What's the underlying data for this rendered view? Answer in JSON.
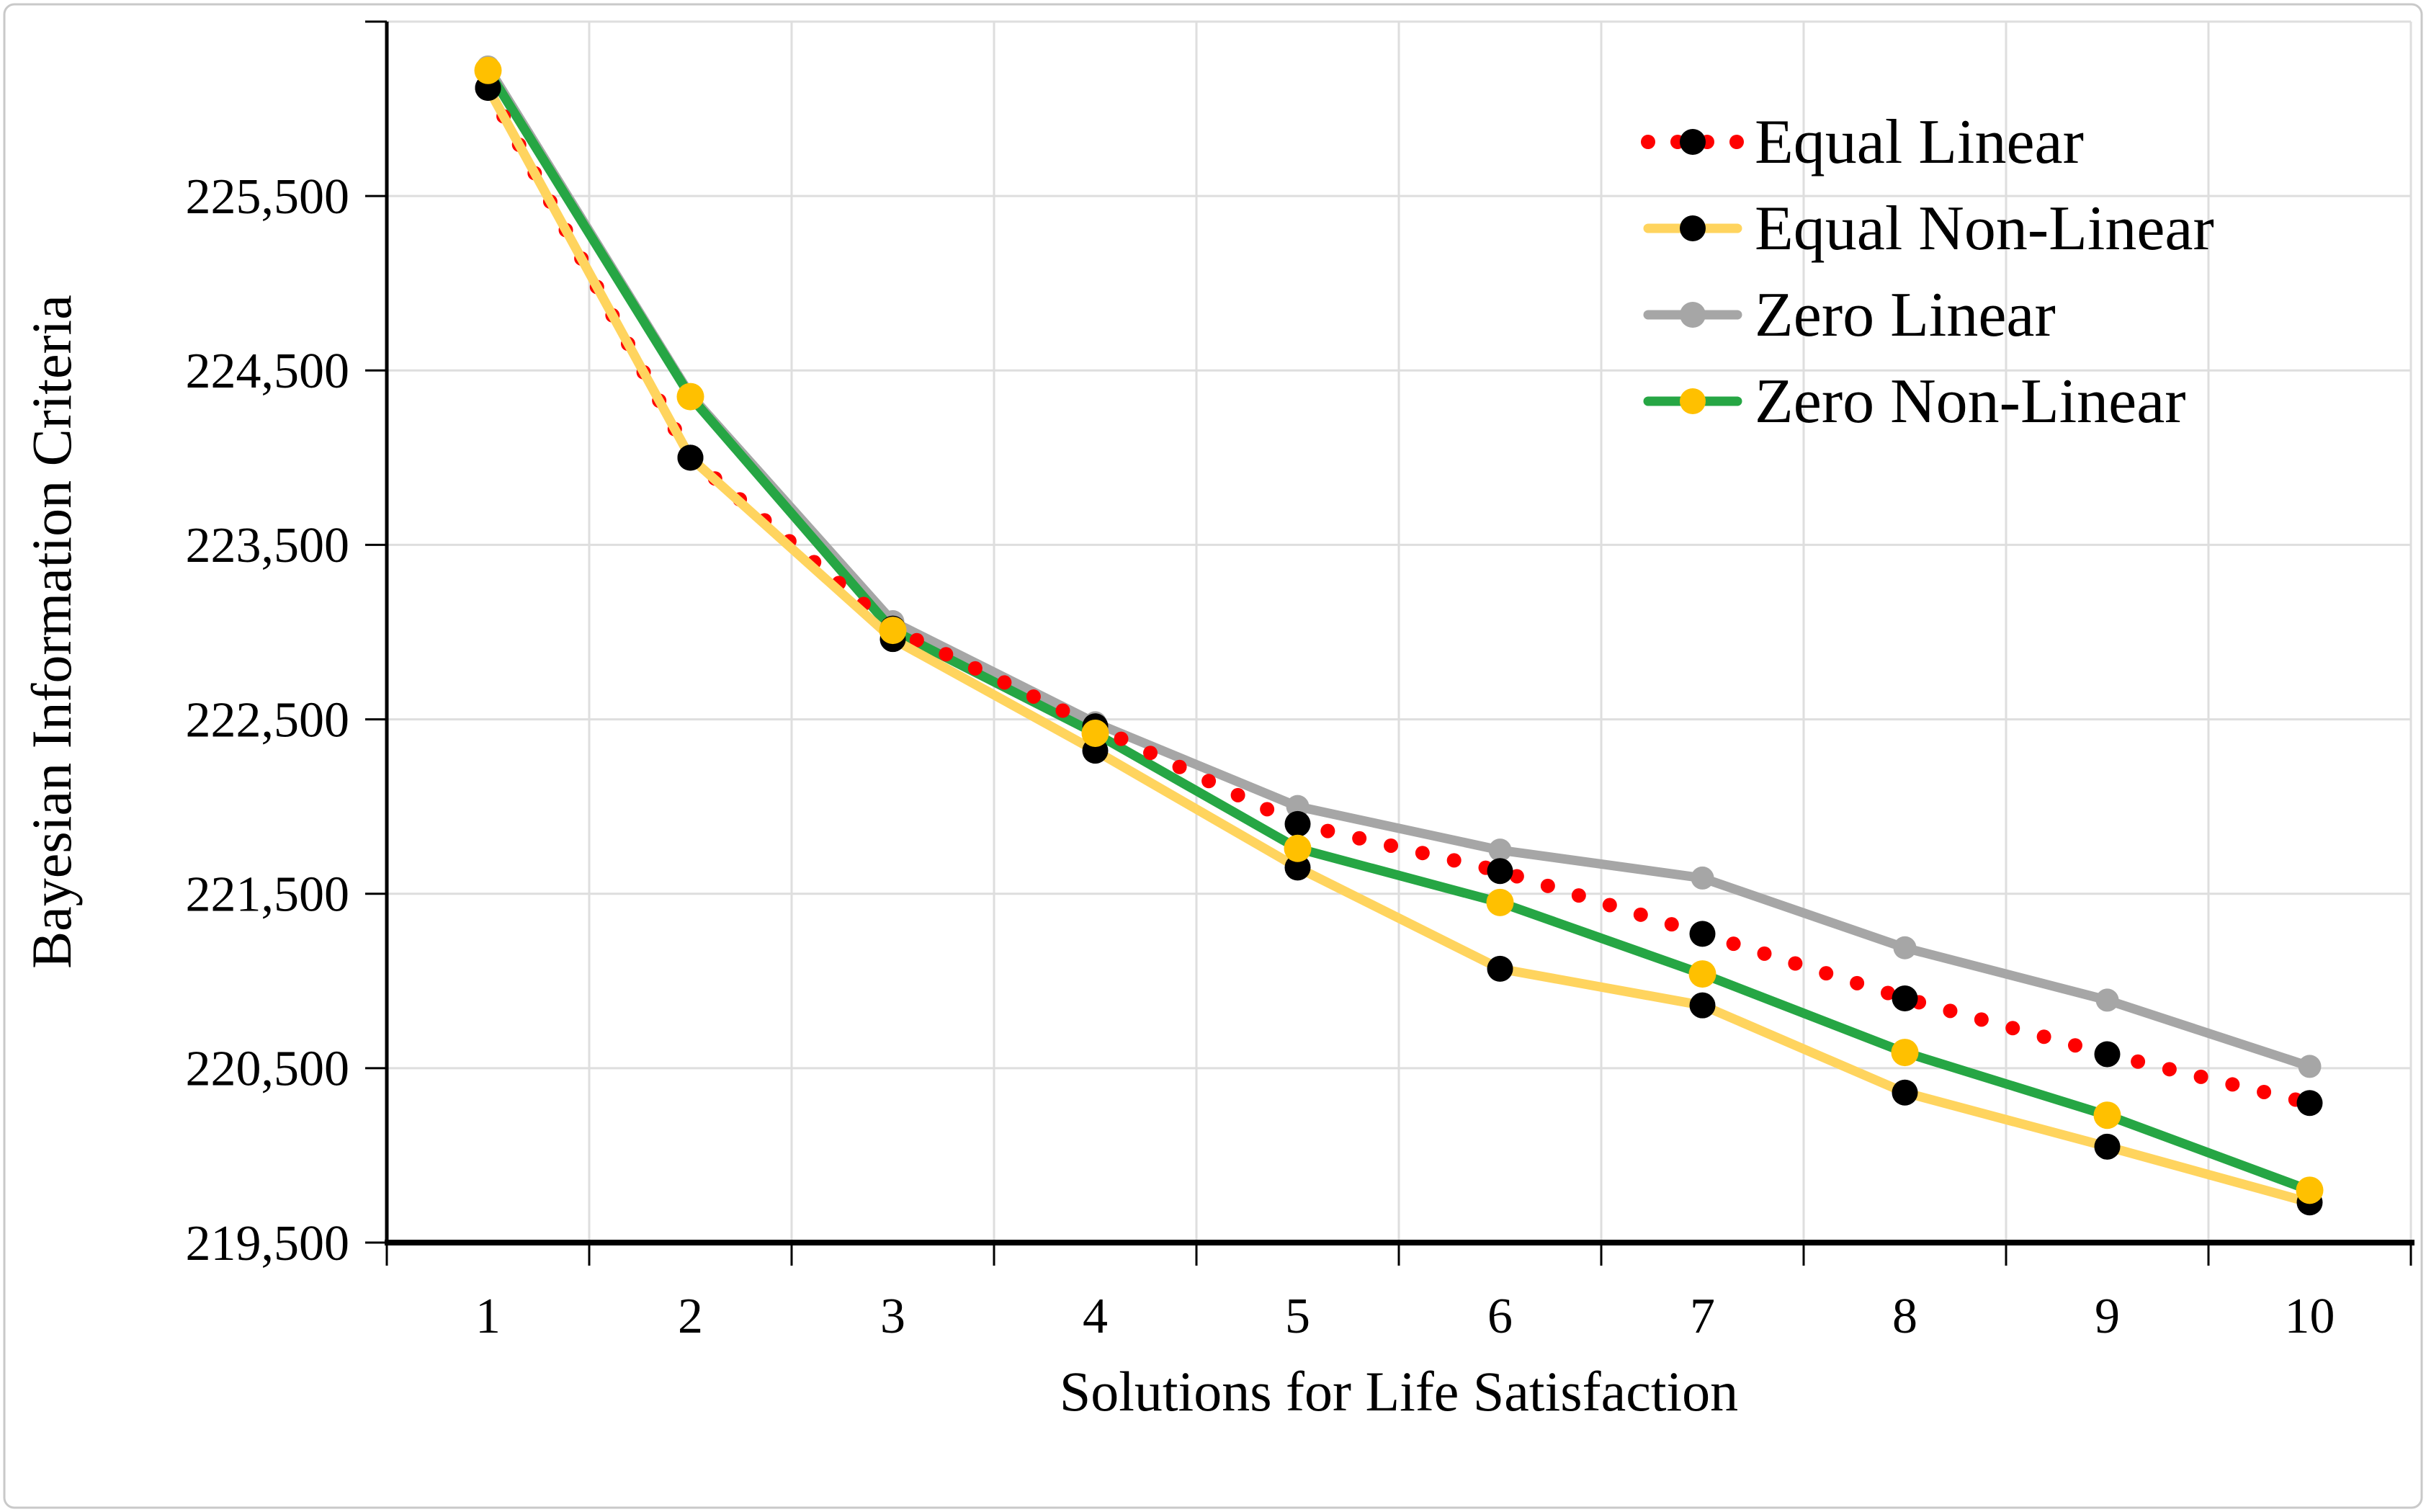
{
  "chart_data": {
    "type": "line",
    "title": "",
    "xlabel": "Solutions for Life Satisfaction",
    "ylabel": "Bayesian Information Criteria",
    "x": [
      1,
      2,
      3,
      4,
      5,
      6,
      7,
      8,
      9,
      10
    ],
    "x_tick_labels": [
      "1",
      "2",
      "3",
      "4",
      "5",
      "6",
      "7",
      "8",
      "9",
      "10"
    ],
    "y_ticks": [
      219500,
      220500,
      221500,
      222500,
      223500,
      224500,
      225500
    ],
    "y_tick_labels": [
      "219,500",
      "220,500",
      "221,500",
      "222,500",
      "223,500",
      "224,500",
      "225,500"
    ],
    "ylim": [
      219500,
      226500
    ],
    "grid": true,
    "legend_position": "top-right",
    "series": [
      {
        "name": "Equal Linear",
        "line_color": "#FE0000",
        "marker_color": "#000000",
        "line_style": "dotted",
        "values": [
          226120,
          224000,
          223020,
          222460,
          221900,
          221630,
          221270,
          220900,
          220580,
          220300
        ]
      },
      {
        "name": "Equal Non-Linear",
        "line_color": "#FFD45E",
        "marker_color": "#000000",
        "line_style": "solid",
        "values": [
          226120,
          224000,
          222960,
          222320,
          221650,
          221070,
          220860,
          220360,
          220050,
          219730
        ]
      },
      {
        "name": "Zero Linear",
        "line_color": "#A6A6A6",
        "marker_color": "#A6A6A6",
        "line_style": "solid",
        "values": [
          226240,
          224360,
          223060,
          222480,
          222000,
          221750,
          221590,
          221190,
          220890,
          220510
        ]
      },
      {
        "name": "Zero Non-Linear",
        "line_color": "#26A644",
        "marker_color": "#FFC000",
        "line_style": "solid",
        "values": [
          226220,
          224350,
          223010,
          222420,
          221760,
          221450,
          221040,
          220590,
          220230,
          219800
        ]
      }
    ]
  },
  "colors": {
    "grid": "#DEDEDE",
    "axis": "#000000",
    "border": "#C9C9C9",
    "background": "#FFFFFF",
    "text": "#000000"
  }
}
